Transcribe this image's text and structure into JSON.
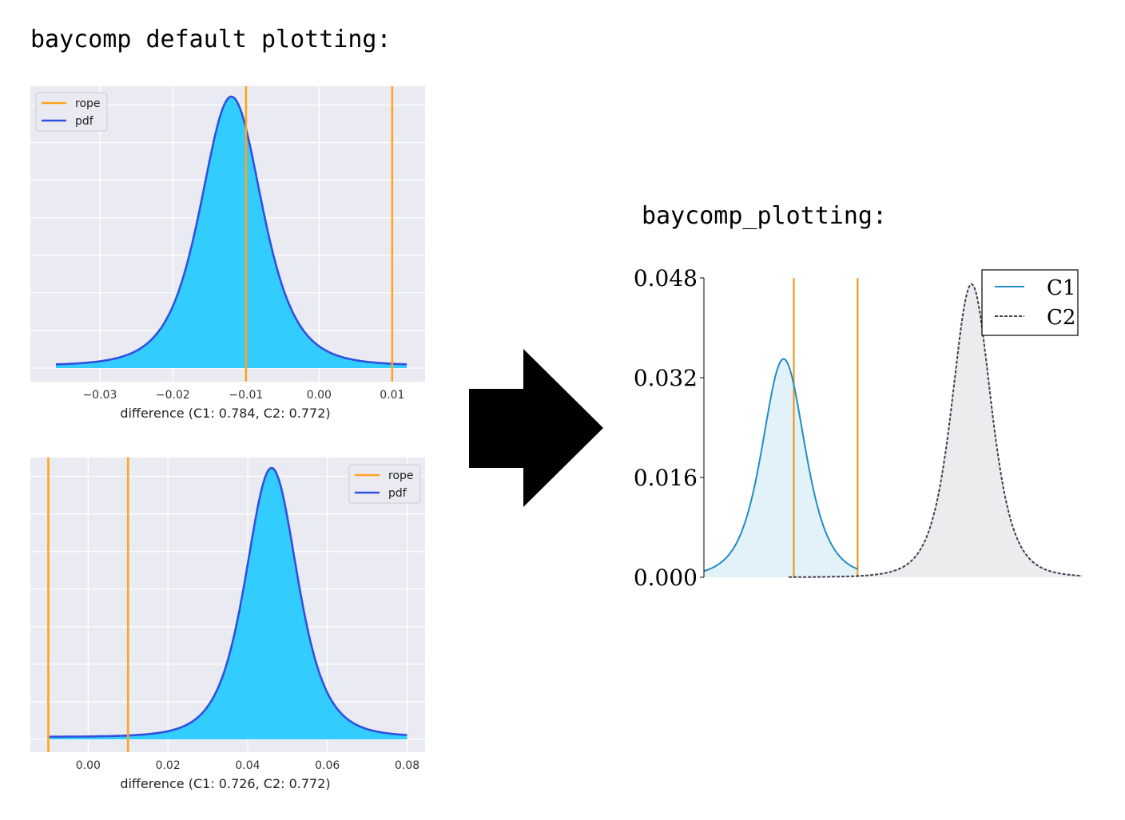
{
  "headings": {
    "left": "baycomp default plotting:",
    "right": "baycomp_plotting:"
  },
  "chart_data": [
    {
      "type": "area",
      "xlabel": "difference (C1: 0.784, C2: 0.772)",
      "xlim": [
        -0.0395,
        0.0145
      ],
      "xticks": [
        -0.03,
        -0.02,
        -0.01,
        0.0,
        0.01
      ],
      "xtick_labels": [
        "−0.03",
        "−0.02",
        "−0.01",
        "0.00",
        "0.01"
      ],
      "rope": [
        -0.01,
        0.01
      ],
      "pdf": {
        "center": -0.012,
        "scale": 0.0044,
        "df": 4,
        "x_range": [
          -0.036,
          0.012
        ]
      },
      "grid": true,
      "legend": {
        "position": "top-left",
        "entries": [
          "rope",
          "pdf"
        ]
      },
      "colors": {
        "rope": "#ffa41c",
        "pdf_line": "#3050e0",
        "pdf_fill": "#33ccff",
        "bg": "#eaeaf2"
      }
    },
    {
      "type": "area",
      "xlabel": "difference (C1: 0.726, C2: 0.772)",
      "xlim": [
        -0.0145,
        0.0845
      ],
      "xticks": [
        0.0,
        0.02,
        0.04,
        0.06,
        0.08
      ],
      "xtick_labels": [
        "0.00",
        "0.02",
        "0.04",
        "0.06",
        "0.08"
      ],
      "rope": [
        -0.01,
        0.01
      ],
      "pdf": {
        "center": 0.046,
        "scale": 0.0068,
        "df": 4,
        "x_range": [
          -0.01,
          0.08
        ]
      },
      "grid": true,
      "legend": {
        "position": "top-right",
        "entries": [
          "rope",
          "pdf"
        ]
      },
      "colors": {
        "rope": "#ffa41c",
        "pdf_line": "#3050e0",
        "pdf_fill": "#33ccff",
        "bg": "#eaeaf2"
      }
    },
    {
      "type": "area",
      "yticks": [
        0.0,
        0.016,
        0.032,
        0.048
      ],
      "ytick_labels": [
        "0.000",
        "0.016",
        "0.032",
        "0.048"
      ],
      "ylim": [
        0,
        0.048
      ],
      "xlim": [
        -0.0276,
        0.0464
      ],
      "rope": [
        -0.01,
        0.0025
      ],
      "series": [
        {
          "name": "C1",
          "center": -0.012,
          "peak": 0.035,
          "scale": 0.0044,
          "df": 4,
          "x_range": [
            -0.0276,
            0.0025
          ],
          "style": "solid"
        },
        {
          "name": "C2",
          "center": 0.0248,
          "peak": 0.047,
          "scale": 0.004,
          "df": 4,
          "x_range": [
            -0.011,
            0.0464
          ],
          "style": "dashed"
        }
      ],
      "legend": {
        "position": "top-right",
        "entries": [
          "C1",
          "C2"
        ]
      },
      "colors": {
        "rope": "#f0900a",
        "C1_line": "#1e8ec4",
        "C1_fill": "#e3f2f9",
        "C2_line": "#404050",
        "C2_fill": "#ececee"
      }
    }
  ]
}
